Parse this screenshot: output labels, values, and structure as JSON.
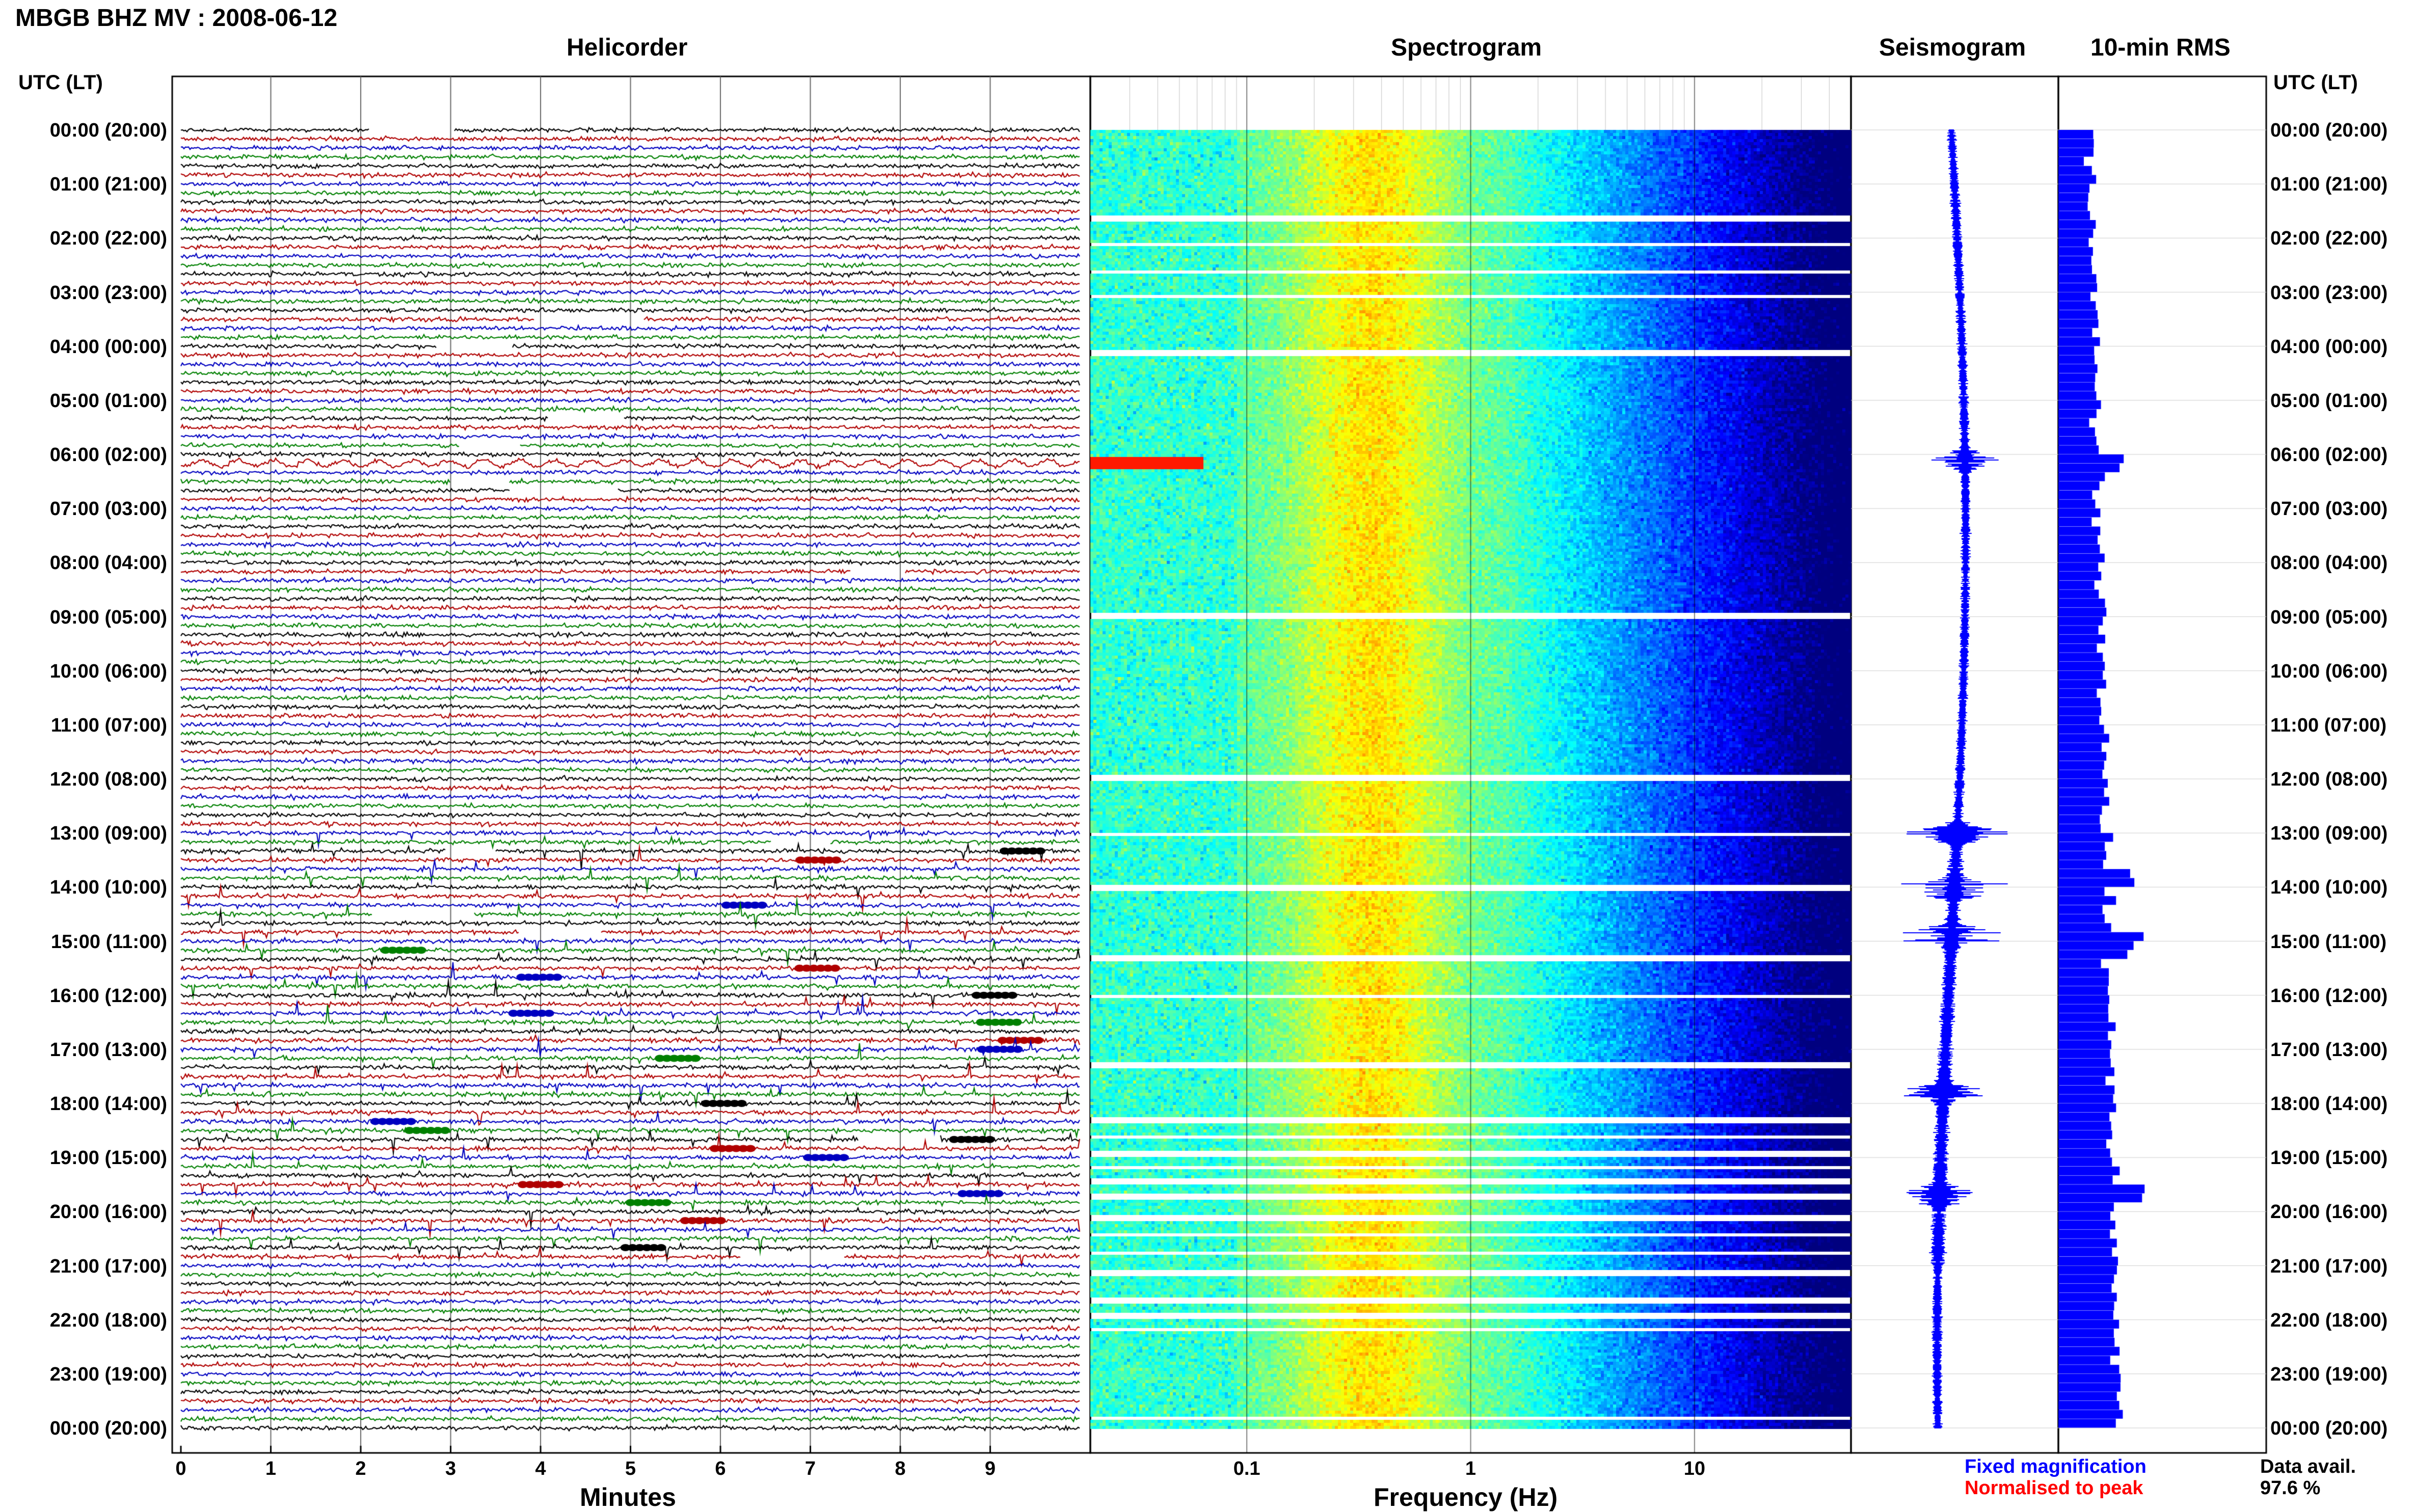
{
  "header": {
    "title": "MBGB BHZ MV : 2008-06-12",
    "utc_label_left": "UTC (LT)",
    "utc_label_right": "UTC (LT)"
  },
  "panels": {
    "helicorder": "Helicorder",
    "spectrogram": "Spectrogram",
    "seismogram": "Seismogram",
    "rms": "10-min RMS"
  },
  "footer": {
    "minutes_label": "Minutes",
    "frequency_label": "Frequency (Hz)",
    "fixed_magnification": "Fixed magnification",
    "normalised": "Normalised to peak",
    "data_avail_label": "Data avail.",
    "data_avail_value": "97.6 %"
  },
  "colors": {
    "trace_cycle": [
      "#000000",
      "#b00000",
      "#0000c0",
      "#008000"
    ],
    "fixed": "#0000ff",
    "normalised": "#ff0000",
    "rms_fill": "#0000ff"
  },
  "chart_data": [
    {
      "type": "heli",
      "name": "helicorder",
      "x_axis": {
        "label": "Minutes",
        "ticks": [
          "0",
          "1",
          "2",
          "3",
          "4",
          "5",
          "6",
          "7",
          "8",
          "9"
        ],
        "range": [
          0,
          10
        ]
      },
      "y_ticks": [
        "00:00 (20:00)",
        "01:00 (21:00)",
        "02:00 (22:00)",
        "03:00 (23:00)",
        "04:00 (00:00)",
        "05:00 (01:00)",
        "06:00 (02:00)",
        "07:00 (03:00)",
        "08:00 (04:00)",
        "09:00 (05:00)",
        "10:00 (06:00)",
        "11:00 (07:00)",
        "12:00 (08:00)",
        "13:00 (09:00)",
        "14:00 (10:00)",
        "15:00 (11:00)",
        "16:00 (12:00)",
        "17:00 (13:00)",
        "18:00 (14:00)",
        "19:00 (15:00)",
        "20:00 (16:00)",
        "21:00 (17:00)",
        "22:00 (18:00)",
        "23:00 (19:00)",
        "00:00 (20:00)"
      ],
      "rows_per_hour": 6,
      "activity_hours": [
        13,
        14,
        15,
        16,
        17,
        18,
        19,
        20
      ]
    },
    {
      "type": "heatmap",
      "name": "spectrogram",
      "x_axis": {
        "label": "Frequency (Hz)",
        "scale": "log",
        "range": [
          0.02,
          50
        ],
        "ticks": [
          "0.1",
          "1",
          "10"
        ]
      },
      "gaps_hours": [
        1.6,
        2.1,
        2.6,
        3.05,
        4.1,
        8.95,
        11.95,
        13.0,
        14.0,
        15.3,
        16.0,
        17.25,
        18.3,
        18.6,
        18.9,
        19.15,
        19.4,
        19.7,
        20.1,
        20.4,
        20.75,
        21.1,
        21.6,
        21.9,
        22.15,
        23.8
      ]
    },
    {
      "type": "line",
      "name": "seismogram",
      "events_hours": [
        6.1,
        13.0,
        14.0,
        14.9,
        17.8,
        19.7
      ]
    },
    {
      "type": "bar",
      "name": "10-min RMS",
      "orientation": "horizontal",
      "bins_per_hour": 6,
      "peaks_hours": [
        6.1,
        13.8,
        15.0,
        19.6
      ]
    }
  ]
}
